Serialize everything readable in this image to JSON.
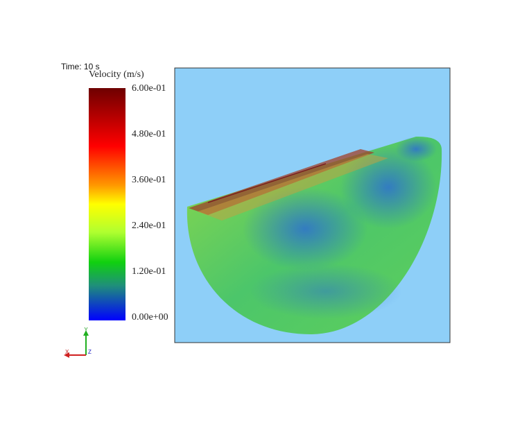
{
  "time_label": "Time: 10 s",
  "colorbar": {
    "title": "Velocity (m/s)",
    "labels": [
      "6.00e-01",
      "4.80e-01",
      "3.60e-01",
      "2.40e-01",
      "1.20e-01",
      "0.00e+00"
    ]
  },
  "triad": {
    "y": "Y",
    "x": "X",
    "z": "Z"
  }
}
